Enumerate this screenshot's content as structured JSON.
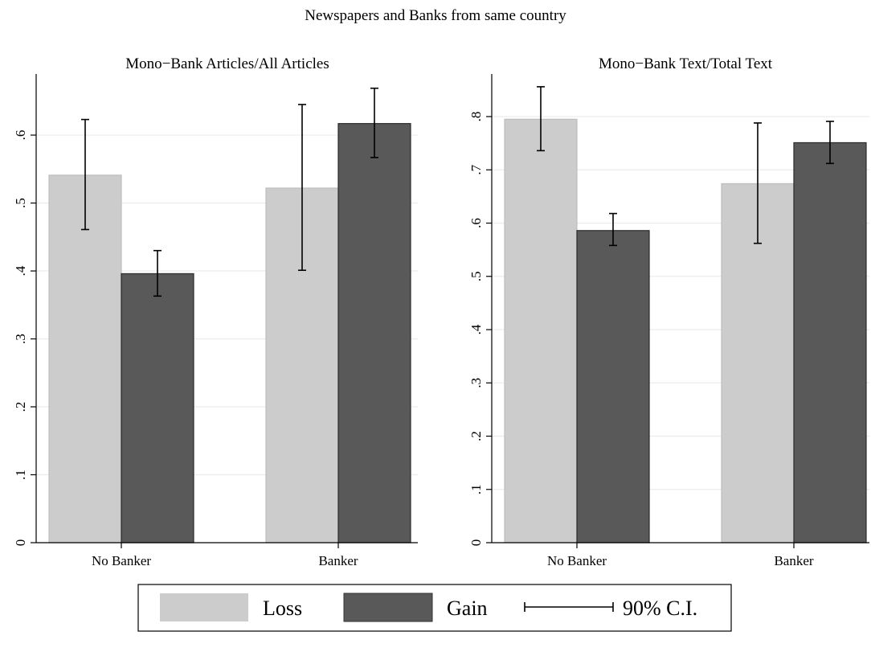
{
  "figure_title": "Newspapers and Banks from same country",
  "legend": {
    "items": [
      {
        "label": "Loss",
        "color": "#cccccc"
      },
      {
        "label": "Gain",
        "color": "#595959"
      },
      {
        "label": "90% C.I.",
        "kind": "errorbar"
      }
    ]
  },
  "chart_data": [
    {
      "type": "bar",
      "title": "Mono−Bank Articles/All Articles",
      "categories": [
        "No Banker",
        "Banker"
      ],
      "series": [
        {
          "name": "Loss",
          "color": "#cccccc",
          "values": [
            0.541,
            0.522
          ],
          "ci_low": [
            0.461,
            0.401
          ],
          "ci_high": [
            0.623,
            0.645
          ]
        },
        {
          "name": "Gain",
          "color": "#595959",
          "values": [
            0.396,
            0.617
          ],
          "ci_low": [
            0.363,
            0.567
          ],
          "ci_high": [
            0.43,
            0.669
          ]
        }
      ],
      "yticks": [
        0,
        0.1,
        0.2,
        0.3,
        0.4,
        0.5,
        0.6
      ],
      "yticklabels": [
        "0",
        ".1",
        ".2",
        ".3",
        ".4",
        ".5",
        ".6"
      ],
      "ylim": [
        0,
        0.69
      ],
      "grid": true,
      "legend": "bottom"
    },
    {
      "type": "bar",
      "title": "Mono−Bank Text/Total Text",
      "categories": [
        "No Banker",
        "Banker"
      ],
      "series": [
        {
          "name": "Loss",
          "color": "#cccccc",
          "values": [
            0.795,
            0.674
          ],
          "ci_low": [
            0.736,
            0.562
          ],
          "ci_high": [
            0.856,
            0.788
          ]
        },
        {
          "name": "Gain",
          "color": "#595959",
          "values": [
            0.586,
            0.751
          ],
          "ci_low": [
            0.558,
            0.712
          ],
          "ci_high": [
            0.618,
            0.791
          ]
        }
      ],
      "yticks": [
        0,
        0.1,
        0.2,
        0.3,
        0.4,
        0.5,
        0.6,
        0.7,
        0.8
      ],
      "yticklabels": [
        "0",
        ".1",
        ".2",
        ".3",
        ".4",
        ".5",
        ".6",
        ".7",
        ".8"
      ],
      "ylim": [
        0,
        0.88
      ],
      "grid": true,
      "legend": "bottom"
    }
  ]
}
